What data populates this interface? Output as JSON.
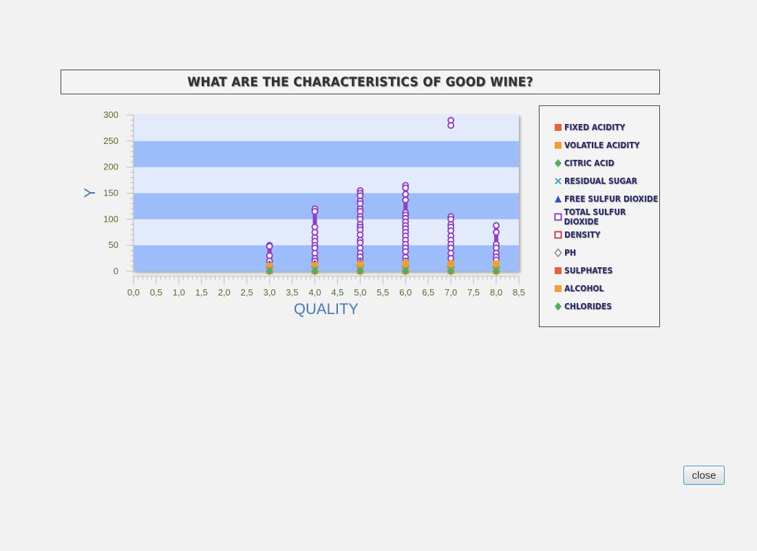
{
  "title": "WHAT ARE THE CHARACTERISTICS OF GOOD WINE?",
  "close_label": "close",
  "legend": [
    {
      "label": "FIXED ACIDITY",
      "icon": "square",
      "color": "#e8603c"
    },
    {
      "label": "VOLATILE ACIDITY",
      "icon": "square",
      "color": "#f0a030"
    },
    {
      "label": "CITRIC ACID",
      "icon": "diamond",
      "color": "#5aaa5a"
    },
    {
      "label": "RESIDUAL SUGAR",
      "icon": "cross",
      "color": "#4aa0c8"
    },
    {
      "label": "FREE SULFUR DIOXIDE",
      "icon": "triangle",
      "color": "#3a50b0"
    },
    {
      "label": "TOTAL SULFUR DIOXIDE",
      "icon": "square-open",
      "color": "#9040c0"
    },
    {
      "label": "DENSITY",
      "icon": "square-open",
      "color": "#c04050"
    },
    {
      "label": "PH",
      "icon": "diamond-open",
      "color": "#888888"
    },
    {
      "label": "SULPHATES",
      "icon": "square",
      "color": "#e8603c"
    },
    {
      "label": "ALCOHOL",
      "icon": "square",
      "color": "#f0a030"
    },
    {
      "label": "CHLORIDES",
      "icon": "diamond",
      "color": "#5aaa5a"
    }
  ],
  "chart_data": {
    "type": "scatter",
    "title": "WHAT ARE THE CHARACTERISTICS OF GOOD WINE?",
    "xlabel": "QUALITY",
    "ylabel": "Y",
    "xlim": [
      0,
      8.5
    ],
    "ylim": [
      0,
      300
    ],
    "x_ticks": [
      "0,0",
      "0,5",
      "1,0",
      "1,5",
      "2,0",
      "2,5",
      "3,0",
      "3,5",
      "4,0",
      "4,5",
      "5,0",
      "5,5",
      "6,0",
      "6,5",
      "7,0",
      "7,5",
      "8,0",
      "8,5"
    ],
    "y_ticks": [
      "0",
      "50",
      "100",
      "150",
      "200",
      "250",
      "300"
    ],
    "grid": "alternating horizontal bands",
    "legend_position": "right",
    "series": [
      {
        "name": "TOTAL SULFUR DIOXIDE",
        "color": "#9040c0",
        "marker": "circle-open",
        "points": [
          [
            3,
            50
          ],
          [
            3,
            48
          ],
          [
            3,
            30
          ],
          [
            3,
            20
          ],
          [
            4,
            120
          ],
          [
            4,
            115
          ],
          [
            4,
            85
          ],
          [
            4,
            75
          ],
          [
            4,
            65
          ],
          [
            4,
            58
          ],
          [
            4,
            50
          ],
          [
            4,
            45
          ],
          [
            4,
            35
          ],
          [
            4,
            25
          ],
          [
            4,
            20
          ],
          [
            5,
            155
          ],
          [
            5,
            150
          ],
          [
            5,
            145
          ],
          [
            5,
            135
          ],
          [
            5,
            130
          ],
          [
            5,
            120
          ],
          [
            5,
            115
          ],
          [
            5,
            105
          ],
          [
            5,
            100
          ],
          [
            5,
            90
          ],
          [
            5,
            85
          ],
          [
            5,
            80
          ],
          [
            5,
            70
          ],
          [
            5,
            60
          ],
          [
            5,
            55
          ],
          [
            5,
            45
          ],
          [
            5,
            35
          ],
          [
            5,
            28
          ],
          [
            5,
            20
          ],
          [
            6,
            165
          ],
          [
            6,
            160
          ],
          [
            6,
            148
          ],
          [
            6,
            137
          ],
          [
            6,
            113
          ],
          [
            6,
            108
          ],
          [
            6,
            102
          ],
          [
            6,
            95
          ],
          [
            6,
            88
          ],
          [
            6,
            82
          ],
          [
            6,
            75
          ],
          [
            6,
            68
          ],
          [
            6,
            60
          ],
          [
            6,
            52
          ],
          [
            6,
            45
          ],
          [
            6,
            38
          ],
          [
            6,
            27
          ],
          [
            6,
            20
          ],
          [
            7,
            290
          ],
          [
            7,
            280
          ],
          [
            7,
            105
          ],
          [
            7,
            100
          ],
          [
            7,
            90
          ],
          [
            7,
            85
          ],
          [
            7,
            78
          ],
          [
            7,
            68
          ],
          [
            7,
            60
          ],
          [
            7,
            52
          ],
          [
            7,
            45
          ],
          [
            7,
            35
          ],
          [
            7,
            25
          ],
          [
            8,
            88
          ],
          [
            8,
            75
          ],
          [
            8,
            52
          ],
          [
            8,
            45
          ],
          [
            8,
            35
          ],
          [
            8,
            28
          ],
          [
            8,
            22
          ]
        ]
      },
      {
        "name": "FREE SULFUR DIOXIDE",
        "color": "#3a50b0",
        "marker": "triangle",
        "points": [
          [
            3,
            14
          ],
          [
            4,
            15
          ],
          [
            5,
            17
          ],
          [
            6,
            16
          ],
          [
            7,
            14
          ],
          [
            8,
            13
          ]
        ]
      },
      {
        "name": "FIXED ACIDITY",
        "color": "#e8603c",
        "marker": "square",
        "points": [
          [
            3,
            9
          ],
          [
            4,
            8
          ],
          [
            5,
            8
          ],
          [
            6,
            8
          ],
          [
            7,
            9
          ],
          [
            8,
            9
          ]
        ]
      },
      {
        "name": "ALCOHOL",
        "color": "#f0a030",
        "marker": "square",
        "points": [
          [
            3,
            10
          ],
          [
            4,
            11
          ],
          [
            5,
            13
          ],
          [
            6,
            14
          ],
          [
            7,
            14
          ],
          [
            8,
            14
          ]
        ]
      },
      {
        "name": "VOLATILE ACIDITY",
        "color": "#f0a030",
        "marker": "square",
        "points": [
          [
            3,
            1
          ],
          [
            4,
            1
          ],
          [
            5,
            1
          ],
          [
            6,
            1
          ],
          [
            7,
            1
          ],
          [
            8,
            1
          ]
        ]
      },
      {
        "name": "RESIDUAL SUGAR",
        "color": "#4aa0c8",
        "marker": "cross",
        "points": [
          [
            3,
            3
          ],
          [
            4,
            3
          ],
          [
            5,
            3
          ],
          [
            6,
            3
          ],
          [
            7,
            3
          ],
          [
            8,
            3
          ]
        ]
      },
      {
        "name": "CITRIC ACID",
        "color": "#5aaa5a",
        "marker": "diamond",
        "points": [
          [
            3,
            1
          ],
          [
            4,
            1
          ],
          [
            5,
            1
          ],
          [
            6,
            1
          ],
          [
            7,
            1
          ],
          [
            8,
            1
          ]
        ]
      },
      {
        "name": "CHLORIDES",
        "color": "#5aaa5a",
        "marker": "diamond",
        "points": [
          [
            3,
            0
          ],
          [
            4,
            0
          ],
          [
            5,
            0
          ],
          [
            6,
            0
          ],
          [
            7,
            0
          ],
          [
            8,
            0
          ]
        ]
      }
    ]
  }
}
